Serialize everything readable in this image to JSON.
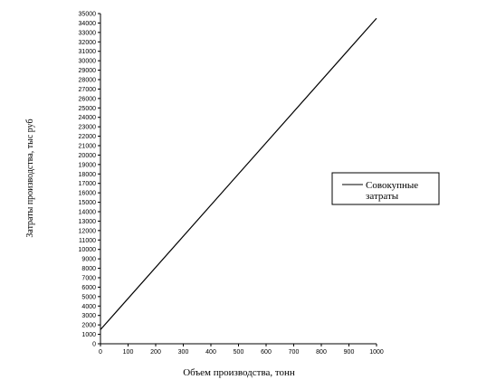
{
  "chart_data": {
    "type": "line",
    "title": "",
    "xlabel": "Объем производства, тонн",
    "ylabel": "Затраты производства, тыс руб",
    "xlim": [
      0,
      1000
    ],
    "ylim": [
      0,
      35000
    ],
    "x_ticks": [
      0,
      100,
      200,
      300,
      400,
      500,
      600,
      700,
      800,
      900,
      1000
    ],
    "y_ticks": [
      0,
      1000,
      2000,
      3000,
      4000,
      5000,
      6000,
      7000,
      8000,
      9000,
      10000,
      11000,
      12000,
      13000,
      14000,
      15000,
      16000,
      17000,
      18000,
      19000,
      20000,
      21000,
      22000,
      23000,
      24000,
      25000,
      26000,
      27000,
      28000,
      29000,
      30000,
      31000,
      32000,
      33000,
      34000,
      35000
    ],
    "grid": false,
    "legend_position": "right",
    "series": [
      {
        "name": "Совокупные затраты",
        "color": "#000000",
        "x": [
          0,
          1000
        ],
        "y": [
          1500,
          34500
        ]
      }
    ]
  },
  "legend": {
    "line1": "Совокупные",
    "line2": "затраты"
  }
}
